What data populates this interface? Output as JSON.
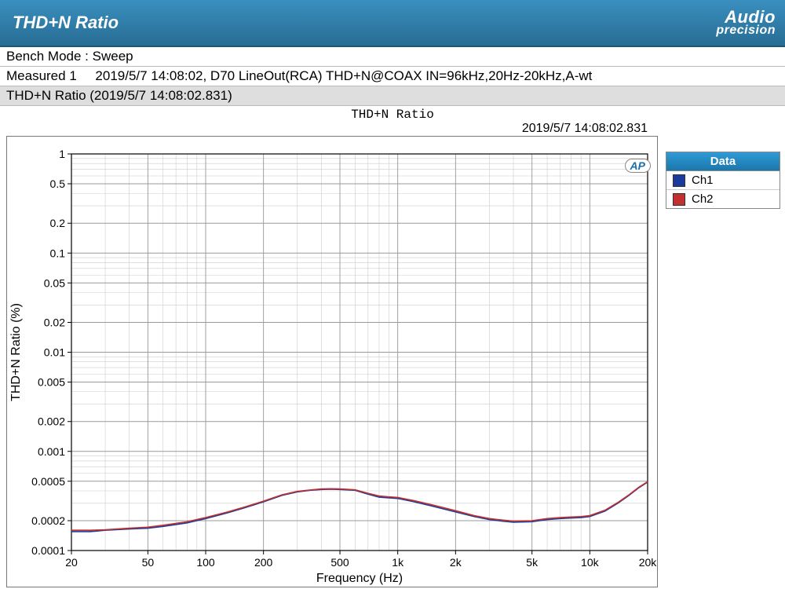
{
  "header": {
    "title": "THD+N Ratio",
    "logo_line1": "Audio",
    "logo_line2": "precision"
  },
  "info": {
    "bench_mode_label": "Bench Mode :",
    "bench_mode_value": "Sweep",
    "measured_label": "Measured 1",
    "measured_details": "2019/5/7 14:08:02, D70 LineOut(RCA) THD+N@COAX IN=96kHz,20Hz-20kHz,A-wt",
    "subtitle": "THD+N Ratio (2019/5/7 14:08:02.831)",
    "chart_title": "THD+N Ratio",
    "timestamp": "2019/5/7 14:08:02.831"
  },
  "legend": {
    "header": "Data",
    "items": [
      {
        "label": "Ch1",
        "color": "#1a3b9c"
      },
      {
        "label": "Ch2",
        "color": "#c23030"
      }
    ]
  },
  "chart": {
    "type": "line",
    "background_color": "#ffffff",
    "grid_color": "#cccccc",
    "grid_major_color": "#999999",
    "axis_color": "#000000",
    "xlabel": "Frequency (Hz)",
    "ylabel": "THD+N Ratio (%)",
    "label_fontsize": 16,
    "tick_fontsize": 14,
    "x_scale": "log",
    "y_scale": "log",
    "xlim": [
      20,
      20000
    ],
    "ylim": [
      0.0001,
      1
    ],
    "x_ticks": [
      {
        "v": 20,
        "l": "20"
      },
      {
        "v": 50,
        "l": "50"
      },
      {
        "v": 100,
        "l": "100"
      },
      {
        "v": 200,
        "l": "200"
      },
      {
        "v": 500,
        "l": "500"
      },
      {
        "v": 1000,
        "l": "1k"
      },
      {
        "v": 2000,
        "l": "2k"
      },
      {
        "v": 5000,
        "l": "5k"
      },
      {
        "v": 10000,
        "l": "10k"
      },
      {
        "v": 20000,
        "l": "20k"
      }
    ],
    "y_ticks": [
      {
        "v": 0.0001,
        "l": "0.0001"
      },
      {
        "v": 0.0002,
        "l": "0.0002"
      },
      {
        "v": 0.0005,
        "l": "0.0005"
      },
      {
        "v": 0.001,
        "l": "0.001"
      },
      {
        "v": 0.002,
        "l": "0.002"
      },
      {
        "v": 0.005,
        "l": "0.005"
      },
      {
        "v": 0.01,
        "l": "0.01"
      },
      {
        "v": 0.02,
        "l": "0.02"
      },
      {
        "v": 0.05,
        "l": "0.05"
      },
      {
        "v": 0.1,
        "l": "0.1"
      },
      {
        "v": 0.2,
        "l": "0.2"
      },
      {
        "v": 0.5,
        "l": "0.5"
      },
      {
        "v": 1,
        "l": "1"
      }
    ],
    "x_minor_1_2_5": [
      20,
      30,
      40,
      50,
      60,
      70,
      80,
      90,
      100,
      200,
      300,
      400,
      500,
      600,
      700,
      800,
      900,
      1000,
      2000,
      3000,
      4000,
      5000,
      6000,
      7000,
      8000,
      9000,
      10000,
      20000
    ],
    "y_minor": [
      0.0001,
      0.0002,
      0.0003,
      0.0004,
      0.0005,
      0.0006,
      0.0007,
      0.0008,
      0.0009,
      0.001,
      0.002,
      0.003,
      0.004,
      0.005,
      0.006,
      0.007,
      0.008,
      0.009,
      0.01,
      0.02,
      0.03,
      0.04,
      0.05,
      0.06,
      0.07,
      0.08,
      0.09,
      0.1,
      0.2,
      0.3,
      0.4,
      0.5,
      0.6,
      0.7,
      0.8,
      0.9,
      1
    ],
    "line_width": 1.6,
    "series": [
      {
        "name": "Ch1",
        "color": "#1a3b9c",
        "points": [
          [
            20,
            0.000155
          ],
          [
            25,
            0.000155
          ],
          [
            30,
            0.00016
          ],
          [
            40,
            0.000165
          ],
          [
            50,
            0.000168
          ],
          [
            60,
            0.000175
          ],
          [
            80,
            0.00019
          ],
          [
            100,
            0.00021
          ],
          [
            130,
            0.00024
          ],
          [
            160,
            0.00027
          ],
          [
            200,
            0.00031
          ],
          [
            250,
            0.00036
          ],
          [
            300,
            0.00039
          ],
          [
            350,
            0.000405
          ],
          [
            400,
            0.000412
          ],
          [
            450,
            0.000415
          ],
          [
            500,
            0.000412
          ],
          [
            600,
            0.000405
          ],
          [
            700,
            0.00037
          ],
          [
            800,
            0.000345
          ],
          [
            900,
            0.00034
          ],
          [
            1000,
            0.000335
          ],
          [
            1200,
            0.000312
          ],
          [
            1500,
            0.000282
          ],
          [
            2000,
            0.000245
          ],
          [
            2500,
            0.00022
          ],
          [
            3000,
            0.000205
          ],
          [
            3500,
            0.000198
          ],
          [
            4000,
            0.000193
          ],
          [
            5000,
            0.000195
          ],
          [
            6000,
            0.000205
          ],
          [
            7000,
            0.00021
          ],
          [
            8000,
            0.000213
          ],
          [
            9000,
            0.000215
          ],
          [
            10000,
            0.00022
          ],
          [
            12000,
            0.00025
          ],
          [
            14000,
            0.0003
          ],
          [
            16000,
            0.00036
          ],
          [
            18000,
            0.00043
          ],
          [
            20000,
            0.00049
          ]
        ]
      },
      {
        "name": "Ch2",
        "color": "#c23030",
        "points": [
          [
            20,
            0.00016
          ],
          [
            25,
            0.00016
          ],
          [
            30,
            0.000162
          ],
          [
            40,
            0.000168
          ],
          [
            50,
            0.000172
          ],
          [
            60,
            0.00018
          ],
          [
            80,
            0.000195
          ],
          [
            100,
            0.000215
          ],
          [
            130,
            0.000245
          ],
          [
            160,
            0.000275
          ],
          [
            200,
            0.000315
          ],
          [
            250,
            0.000365
          ],
          [
            300,
            0.000395
          ],
          [
            350,
            0.000408
          ],
          [
            400,
            0.000418
          ],
          [
            450,
            0.00042
          ],
          [
            500,
            0.000418
          ],
          [
            600,
            0.00041
          ],
          [
            700,
            0.000378
          ],
          [
            800,
            0.000355
          ],
          [
            900,
            0.000348
          ],
          [
            1000,
            0.000343
          ],
          [
            1200,
            0.00032
          ],
          [
            1500,
            0.00029
          ],
          [
            2000,
            0.000252
          ],
          [
            2500,
            0.000225
          ],
          [
            3000,
            0.00021
          ],
          [
            3500,
            0.000203
          ],
          [
            4000,
            0.000198
          ],
          [
            5000,
            0.0002
          ],
          [
            6000,
            0.00021
          ],
          [
            7000,
            0.000215
          ],
          [
            8000,
            0.000218
          ],
          [
            9000,
            0.00022
          ],
          [
            10000,
            0.000225
          ],
          [
            12000,
            0.000255
          ],
          [
            14000,
            0.000305
          ],
          [
            16000,
            0.000365
          ],
          [
            18000,
            0.000435
          ],
          [
            20000,
            0.000495
          ]
        ]
      }
    ],
    "ap_badge": "AP"
  }
}
